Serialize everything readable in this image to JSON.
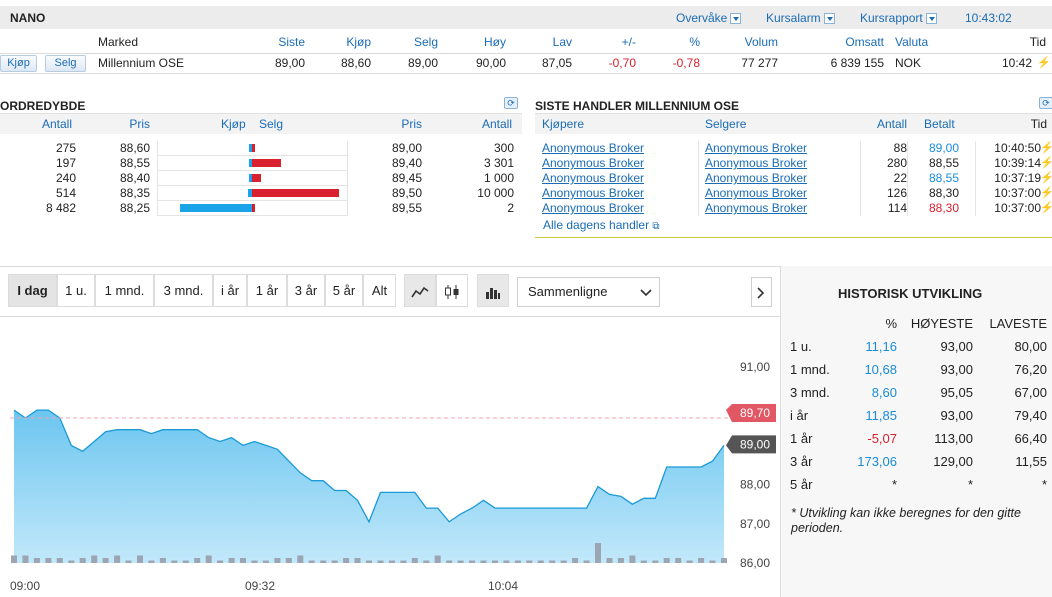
{
  "header": {
    "title": "NANO",
    "links": [
      "Overvåke",
      "Kursalarm",
      "Kursrapport"
    ],
    "time": "10:43:02"
  },
  "quote": {
    "columns": [
      "Marked",
      "Siste",
      "Kjøp",
      "Selg",
      "Høy",
      "Lav",
      "+/-",
      "%",
      "Volum",
      "Omsatt",
      "Valuta",
      "Tid"
    ],
    "buy_label": "Kjøp",
    "sell_label": "Selg",
    "market": "Millennium OSE",
    "siste": "89,00",
    "kjop": "88,60",
    "selg": "89,00",
    "hoy": "90,00",
    "lav": "87,05",
    "change": "-0,70",
    "pct": "-0,78",
    "volum": "77 277",
    "omsatt": "6 839 155",
    "valuta": "NOK",
    "tid": "10:42"
  },
  "orderbook": {
    "title": "ORDREDYBDE",
    "columns": [
      "Antall",
      "Pris",
      "Kjøp",
      "Selg",
      "Pris",
      "Antall"
    ],
    "rows": [
      {
        "bid_qty": "275",
        "bid": "88,60",
        "ask": "89,00",
        "ask_qty": "300",
        "bid_bar": 275,
        "ask_bar": 300
      },
      {
        "bid_qty": "197",
        "bid": "88,55",
        "ask": "89,40",
        "ask_qty": "3 301",
        "bid_bar": 197,
        "ask_bar": 3301
      },
      {
        "bid_qty": "240",
        "bid": "88,40",
        "ask": "89,45",
        "ask_qty": "1 000",
        "bid_bar": 240,
        "ask_bar": 1000
      },
      {
        "bid_qty": "514",
        "bid": "88,35",
        "ask": "89,50",
        "ask_qty": "10 000",
        "bid_bar": 514,
        "ask_bar": 10000
      },
      {
        "bid_qty": "8 482",
        "bid": "88,25",
        "ask": "89,55",
        "ask_qty": "2",
        "bid_bar": 8482,
        "ask_bar": 2
      }
    ]
  },
  "trades": {
    "title": "SISTE HANDLER MILLENNIUM OSE",
    "columns": [
      "Kjøpere",
      "Selgere",
      "Antall",
      "Betalt",
      "Tid"
    ],
    "rows": [
      {
        "buyer": "Anonymous Broker",
        "seller": "Anonymous Broker",
        "qty": "88",
        "price": "89,00",
        "dir": "up",
        "time": "10:40:50"
      },
      {
        "buyer": "Anonymous Broker",
        "seller": "Anonymous Broker",
        "qty": "280",
        "price": "88,55",
        "dir": "none",
        "time": "10:39:14"
      },
      {
        "buyer": "Anonymous Broker",
        "seller": "Anonymous Broker",
        "qty": "22",
        "price": "88,55",
        "dir": "up",
        "time": "10:37:19"
      },
      {
        "buyer": "Anonymous Broker",
        "seller": "Anonymous Broker",
        "qty": "126",
        "price": "88,30",
        "dir": "none",
        "time": "10:37:00"
      },
      {
        "buyer": "Anonymous Broker",
        "seller": "Anonymous Broker",
        "qty": "114",
        "price": "88,30",
        "dir": "down",
        "time": "10:37:00"
      }
    ],
    "all_link": "Alle dagens handler"
  },
  "chart_toolbar": {
    "periods": [
      "I dag",
      "1 u.",
      "1 mnd.",
      "3 mnd.",
      "i år",
      "1 år",
      "3 år",
      "5 år",
      "Alt"
    ],
    "active": "I dag",
    "compare": "Sammenligne"
  },
  "chart_data": {
    "type": "area",
    "x_labels": [
      "09:00",
      "09:32",
      "10:04"
    ],
    "y_ticks": [
      "91,00",
      "89,00",
      "88,00",
      "87,00",
      "86,00"
    ],
    "ylim": [
      86.0,
      91.0
    ],
    "reference_label": "89,70",
    "reference_value": 89.7,
    "last_label": "89,00",
    "last_value": 89.0,
    "series": [
      {
        "values": [
          89.9,
          89.7,
          89.9,
          89.9,
          89.7,
          89.0,
          88.85,
          89.1,
          89.35,
          89.4,
          89.4,
          89.4,
          89.3,
          89.4,
          89.4,
          89.4,
          89.4,
          89.2,
          89.1,
          89.2,
          89.0,
          89.1,
          89.0,
          88.9,
          88.6,
          88.3,
          88.1,
          88.1,
          87.85,
          87.85,
          87.6,
          87.05,
          87.8,
          87.8,
          87.8,
          87.8,
          87.4,
          87.4,
          87.05,
          87.25,
          87.4,
          87.6,
          87.4,
          87.4,
          87.4,
          87.4,
          87.4,
          87.4,
          87.4,
          87.4,
          87.4,
          87.95,
          87.75,
          87.7,
          87.5,
          87.65,
          87.65,
          88.45,
          88.45,
          88.45,
          88.45,
          88.6,
          89.0
        ]
      },
      {
        "name": "Volum",
        "values": [
          3,
          3,
          2,
          2,
          2,
          1,
          2,
          3,
          2,
          3,
          1,
          3,
          1,
          2,
          1,
          1,
          2,
          3,
          1,
          2,
          2,
          1,
          1,
          2,
          2,
          3,
          1,
          1,
          1,
          2,
          2,
          1,
          1,
          1,
          1,
          2,
          1,
          3,
          1,
          1,
          1,
          1,
          1,
          1,
          1,
          1,
          1,
          1,
          1,
          2,
          1,
          8,
          2,
          2,
          3,
          1,
          1,
          2,
          2,
          1,
          2,
          1,
          2
        ]
      }
    ]
  },
  "historical": {
    "title": "HISTORISK UTVIKLING",
    "columns": [
      "%",
      "HØYESTE",
      "LAVESTE"
    ],
    "rows": [
      {
        "period": "1 u.",
        "pct": "11,16",
        "high": "93,00",
        "low": "80,00",
        "neg": false
      },
      {
        "period": "1 mnd.",
        "pct": "10,68",
        "high": "93,00",
        "low": "76,20",
        "neg": false
      },
      {
        "period": "3 mnd.",
        "pct": "8,60",
        "high": "95,05",
        "low": "67,00",
        "neg": false
      },
      {
        "period": "i år",
        "pct": "11,85",
        "high": "93,00",
        "low": "79,40",
        "neg": false
      },
      {
        "period": "1 år",
        "pct": "-5,07",
        "high": "113,00",
        "low": "66,40",
        "neg": true
      },
      {
        "period": "3 år",
        "pct": "173,06",
        "high": "129,00",
        "low": "11,55",
        "neg": false
      },
      {
        "period": "5 år",
        "pct": "*",
        "high": "*",
        "low": "*",
        "neg": false
      }
    ],
    "note": "* Utvikling kan ikke beregnes for den gitte perioden."
  }
}
